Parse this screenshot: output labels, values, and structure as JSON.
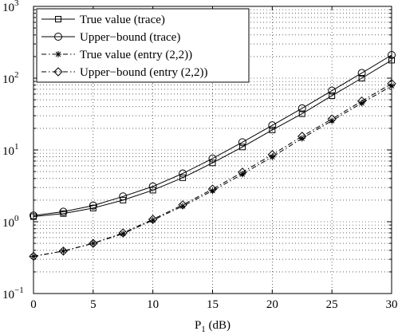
{
  "chart_data": {
    "type": "line",
    "xlabel": "P",
    "xlabel_sub": "1",
    "xlabel_unit": " (dB)",
    "ylabel": "",
    "x_ticks": [
      "0",
      "5",
      "10",
      "15",
      "20",
      "25",
      "30"
    ],
    "y_ticks": [
      {
        "base": "10",
        "exp": "−1"
      },
      {
        "base": "10",
        "exp": "0"
      },
      {
        "base": "10",
        "exp": "1"
      },
      {
        "base": "10",
        "exp": "2"
      },
      {
        "base": "10",
        "exp": "3"
      }
    ],
    "xlim": [
      0,
      30
    ],
    "ylim": [
      0.1,
      1000
    ],
    "yscale": "log",
    "grid": true,
    "legend_position": "top-left",
    "x": [
      0,
      2.5,
      5,
      7.5,
      10,
      12.5,
      15,
      17.5,
      20,
      22.5,
      25,
      27.5,
      30
    ],
    "series": [
      {
        "name": "True value (trace)",
        "marker": "square",
        "dash": "solid",
        "values": [
          1.18,
          1.3,
          1.55,
          2.0,
          2.75,
          4.1,
          6.6,
          11.0,
          19.0,
          32.0,
          57.0,
          100.0,
          178.0
        ]
      },
      {
        "name": "Upper−bound (trace)",
        "marker": "circle",
        "dash": "solid",
        "values": [
          1.22,
          1.38,
          1.68,
          2.25,
          3.1,
          4.7,
          7.6,
          12.8,
          22.0,
          38.0,
          67.0,
          118.0,
          210.0
        ]
      },
      {
        "name": "True value (entry (2,2))",
        "marker": "star",
        "dash": "dashdot",
        "values": [
          0.33,
          0.39,
          0.5,
          0.68,
          1.05,
          1.65,
          2.7,
          4.6,
          8.0,
          14.5,
          25.5,
          45.0,
          78.0
        ]
      },
      {
        "name": "Upper−bound (entry (2,2))",
        "marker": "diamond",
        "dash": "dashdot",
        "values": [
          0.33,
          0.39,
          0.5,
          0.7,
          1.08,
          1.72,
          2.85,
          4.9,
          8.6,
          15.5,
          27.0,
          48.0,
          84.0
        ]
      }
    ]
  }
}
